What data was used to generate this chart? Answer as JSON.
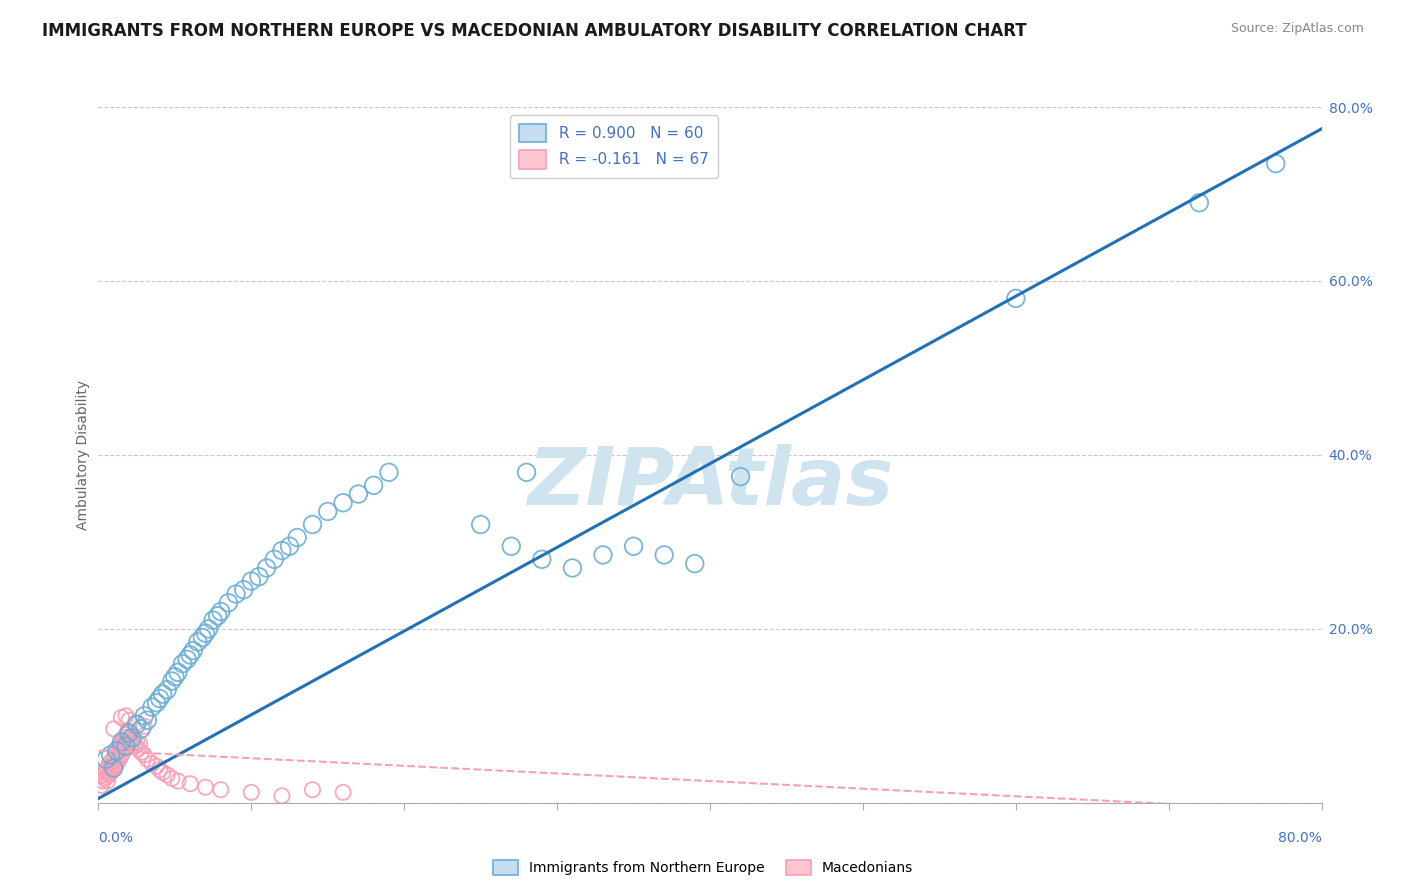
{
  "title": "IMMIGRANTS FROM NORTHERN EUROPE VS MACEDONIAN AMBULATORY DISABILITY CORRELATION CHART",
  "source": "Source: ZipAtlas.com",
  "ylabel": "Ambulatory Disability",
  "y_ticks": [
    0.0,
    0.2,
    0.4,
    0.6,
    0.8
  ],
  "y_tick_labels": [
    "",
    "20.0%",
    "40.0%",
    "60.0%",
    "80.0%"
  ],
  "x_ticks": [
    0.0,
    0.1,
    0.2,
    0.3,
    0.4,
    0.5,
    0.6,
    0.7,
    0.8
  ],
  "legend_blue_r": "R = 0.900",
  "legend_blue_n": "N = 60",
  "legend_pink_r": "R = -0.161",
  "legend_pink_n": "N = 67",
  "blue_scatter": [
    [
      0.005,
      0.05
    ],
    [
      0.008,
      0.055
    ],
    [
      0.01,
      0.04
    ],
    [
      0.012,
      0.06
    ],
    [
      0.015,
      0.07
    ],
    [
      0.018,
      0.065
    ],
    [
      0.02,
      0.08
    ],
    [
      0.022,
      0.075
    ],
    [
      0.025,
      0.09
    ],
    [
      0.028,
      0.085
    ],
    [
      0.03,
      0.1
    ],
    [
      0.032,
      0.095
    ],
    [
      0.035,
      0.11
    ],
    [
      0.038,
      0.115
    ],
    [
      0.04,
      0.12
    ],
    [
      0.042,
      0.125
    ],
    [
      0.045,
      0.13
    ],
    [
      0.048,
      0.14
    ],
    [
      0.05,
      0.145
    ],
    [
      0.052,
      0.15
    ],
    [
      0.055,
      0.16
    ],
    [
      0.058,
      0.165
    ],
    [
      0.06,
      0.17
    ],
    [
      0.062,
      0.175
    ],
    [
      0.065,
      0.185
    ],
    [
      0.068,
      0.19
    ],
    [
      0.07,
      0.195
    ],
    [
      0.072,
      0.2
    ],
    [
      0.075,
      0.21
    ],
    [
      0.078,
      0.215
    ],
    [
      0.08,
      0.22
    ],
    [
      0.085,
      0.23
    ],
    [
      0.09,
      0.24
    ],
    [
      0.095,
      0.245
    ],
    [
      0.1,
      0.255
    ],
    [
      0.105,
      0.26
    ],
    [
      0.11,
      0.27
    ],
    [
      0.115,
      0.28
    ],
    [
      0.12,
      0.29
    ],
    [
      0.125,
      0.295
    ],
    [
      0.13,
      0.305
    ],
    [
      0.14,
      0.32
    ],
    [
      0.15,
      0.335
    ],
    [
      0.16,
      0.345
    ],
    [
      0.17,
      0.355
    ],
    [
      0.18,
      0.365
    ],
    [
      0.19,
      0.38
    ],
    [
      0.25,
      0.32
    ],
    [
      0.27,
      0.295
    ],
    [
      0.29,
      0.28
    ],
    [
      0.31,
      0.27
    ],
    [
      0.33,
      0.285
    ],
    [
      0.35,
      0.295
    ],
    [
      0.37,
      0.285
    ],
    [
      0.39,
      0.275
    ],
    [
      0.28,
      0.38
    ],
    [
      0.42,
      0.375
    ],
    [
      0.6,
      0.58
    ],
    [
      0.72,
      0.69
    ],
    [
      0.77,
      0.735
    ]
  ],
  "pink_scatter": [
    [
      0.002,
      0.02
    ],
    [
      0.003,
      0.025
    ],
    [
      0.003,
      0.032
    ],
    [
      0.004,
      0.028
    ],
    [
      0.004,
      0.035
    ],
    [
      0.005,
      0.03
    ],
    [
      0.005,
      0.038
    ],
    [
      0.006,
      0.025
    ],
    [
      0.006,
      0.04
    ],
    [
      0.007,
      0.032
    ],
    [
      0.007,
      0.045
    ],
    [
      0.008,
      0.035
    ],
    [
      0.008,
      0.042
    ],
    [
      0.009,
      0.038
    ],
    [
      0.009,
      0.048
    ],
    [
      0.01,
      0.04
    ],
    [
      0.01,
      0.052
    ],
    [
      0.011,
      0.042
    ],
    [
      0.011,
      0.055
    ],
    [
      0.012,
      0.045
    ],
    [
      0.012,
      0.058
    ],
    [
      0.013,
      0.048
    ],
    [
      0.013,
      0.06
    ],
    [
      0.014,
      0.052
    ],
    [
      0.014,
      0.065
    ],
    [
      0.015,
      0.055
    ],
    [
      0.015,
      0.068
    ],
    [
      0.016,
      0.058
    ],
    [
      0.016,
      0.072
    ],
    [
      0.017,
      0.062
    ],
    [
      0.017,
      0.075
    ],
    [
      0.018,
      0.065
    ],
    [
      0.018,
      0.078
    ],
    [
      0.019,
      0.068
    ],
    [
      0.019,
      0.08
    ],
    [
      0.02,
      0.072
    ],
    [
      0.02,
      0.082
    ],
    [
      0.021,
      0.075
    ],
    [
      0.022,
      0.068
    ],
    [
      0.023,
      0.072
    ],
    [
      0.024,
      0.065
    ],
    [
      0.025,
      0.07
    ],
    [
      0.026,
      0.062
    ],
    [
      0.027,
      0.068
    ],
    [
      0.028,
      0.058
    ],
    [
      0.03,
      0.055
    ],
    [
      0.032,
      0.05
    ],
    [
      0.035,
      0.045
    ],
    [
      0.038,
      0.042
    ],
    [
      0.04,
      0.038
    ],
    [
      0.042,
      0.035
    ],
    [
      0.045,
      0.032
    ],
    [
      0.048,
      0.028
    ],
    [
      0.052,
      0.025
    ],
    [
      0.06,
      0.022
    ],
    [
      0.07,
      0.018
    ],
    [
      0.08,
      0.015
    ],
    [
      0.1,
      0.012
    ],
    [
      0.12,
      0.008
    ],
    [
      0.14,
      0.015
    ],
    [
      0.16,
      0.012
    ],
    [
      0.025,
      0.092
    ],
    [
      0.03,
      0.088
    ],
    [
      0.015,
      0.098
    ],
    [
      0.02,
      0.095
    ],
    [
      0.018,
      0.1
    ],
    [
      0.01,
      0.085
    ]
  ],
  "blue_line_x": [
    0.0,
    0.8
  ],
  "blue_line_y": [
    0.005,
    0.775
  ],
  "pink_line_x": [
    0.0,
    0.8
  ],
  "pink_line_y": [
    0.06,
    -0.01
  ],
  "blue_dot_color": "#6baed6",
  "pink_dot_color": "#fa9fb5",
  "blue_line_color": "#2171b5",
  "pink_line_color": "#f768a1",
  "watermark": "ZIPAtlas",
  "watermark_color": "#d0e4f0",
  "bg_color": "#ffffff",
  "grid_color": "#c8c8c8"
}
